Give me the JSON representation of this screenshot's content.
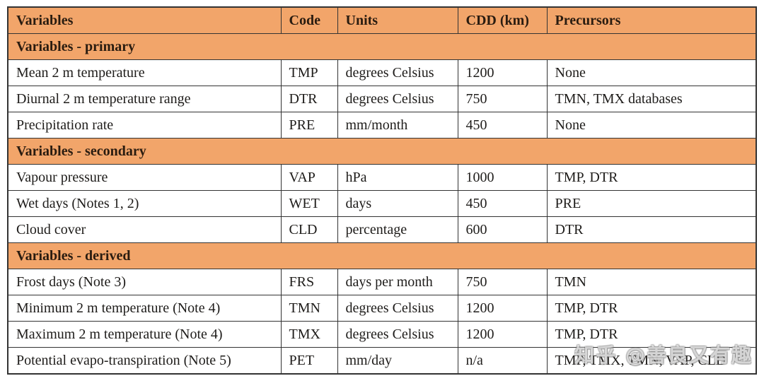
{
  "colors": {
    "header_bg": "#F2A56A",
    "border": "#333333",
    "header_text": "#2a1c10",
    "body_text": "#1e1c1a"
  },
  "watermark": {
    "text": "知乎 @善良又有趣"
  },
  "table": {
    "columns": [
      "Variables",
      "Code",
      "Units",
      "CDD (km)",
      "Precursors"
    ],
    "sections": [
      {
        "title": "Variables - primary",
        "rows": [
          {
            "variable": "Mean 2 m temperature",
            "code": "TMP",
            "units": "degrees Celsius",
            "cdd": "1200",
            "precursors": "None"
          },
          {
            "variable": "Diurnal 2 m temperature range",
            "code": "DTR",
            "units": "degrees Celsius",
            "cdd": "750",
            "precursors": "TMN, TMX databases"
          },
          {
            "variable": "Precipitation rate",
            "code": "PRE",
            "units": "mm/month",
            "cdd": "450",
            "precursors": "None"
          }
        ]
      },
      {
        "title": "Variables - secondary",
        "rows": [
          {
            "variable": "Vapour pressure",
            "code": "VAP",
            "units": "hPa",
            "cdd": "1000",
            "precursors": "TMP, DTR"
          },
          {
            "variable": "Wet days (Notes 1, 2)",
            "code": "WET",
            "units": "days",
            "cdd": "450",
            "precursors": "PRE"
          },
          {
            "variable": "Cloud cover",
            "code": "CLD",
            "units": "percentage",
            "cdd": "600",
            "precursors": "DTR"
          }
        ]
      },
      {
        "title": "Variables - derived",
        "rows": [
          {
            "variable": "Frost days (Note 3)",
            "code": "FRS",
            "units": "days per month",
            "cdd": "750",
            "precursors": "TMN"
          },
          {
            "variable": "Minimum 2 m temperature (Note 4)",
            "code": "TMN",
            "units": "degrees Celsius",
            "cdd": "1200",
            "precursors": "TMP, DTR"
          },
          {
            "variable": "Maximum 2 m temperature (Note 4)",
            "code": "TMX",
            "units": "degrees Celsius",
            "cdd": "1200",
            "precursors": "TMP, DTR"
          },
          {
            "variable": "Potential evapo-transpiration (Note 5)",
            "code": "PET",
            "units": "mm/day",
            "cdd": "n/a",
            "precursors": "TMP, TMX, TMN, VAP, CLD"
          }
        ]
      }
    ]
  }
}
